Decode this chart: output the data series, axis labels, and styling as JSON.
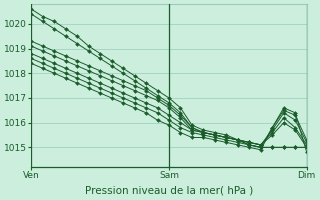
{
  "bg_color": "#cceedd",
  "grid_color": "#99ccbb",
  "line_color": "#1a5c2a",
  "xlabel": "Pression niveau de la mer( hPa )",
  "xtick_labels": [
    "Ven",
    "Sam",
    "Dim"
  ],
  "xtick_positions": [
    0,
    12,
    24
  ],
  "ytick_labels": [
    "1015",
    "1016",
    "1017",
    "1018",
    "1019",
    "1020"
  ],
  "ylim": [
    1014.2,
    1020.8
  ],
  "xlim": [
    0,
    24
  ],
  "xlabel_fontsize": 7.5,
  "tick_fontsize": 6.5,
  "series": [
    [
      1020.6,
      1020.3,
      1020.1,
      1019.8,
      1019.5,
      1019.1,
      1018.8,
      1018.5,
      1018.2,
      1017.9,
      1017.6,
      1017.3,
      1017.0,
      1016.6,
      1015.9,
      1015.7,
      1015.6,
      1015.5,
      1015.3,
      1015.1,
      1015.0,
      1015.0,
      1015.0,
      1015.0,
      1015.0
    ],
    [
      1020.4,
      1020.1,
      1019.8,
      1019.5,
      1019.2,
      1018.9,
      1018.6,
      1018.3,
      1018.0,
      1017.7,
      1017.4,
      1017.1,
      1016.8,
      1016.4,
      1015.8,
      1015.6,
      1015.5,
      1015.4,
      1015.3,
      1015.1,
      1015.0,
      1015.0,
      1015.0,
      1015.0,
      1015.0
    ],
    [
      1019.3,
      1019.1,
      1018.9,
      1018.7,
      1018.5,
      1018.3,
      1018.1,
      1017.9,
      1017.7,
      1017.5,
      1017.3,
      1017.0,
      1016.7,
      1016.3,
      1015.8,
      1015.6,
      1015.5,
      1015.4,
      1015.3,
      1015.2,
      1015.1,
      1015.5,
      1016.0,
      1015.7,
      1015.0
    ],
    [
      1019.1,
      1018.9,
      1018.7,
      1018.5,
      1018.3,
      1018.1,
      1017.9,
      1017.7,
      1017.5,
      1017.3,
      1017.1,
      1016.9,
      1016.6,
      1016.2,
      1015.7,
      1015.6,
      1015.5,
      1015.4,
      1015.3,
      1015.2,
      1015.1,
      1015.6,
      1016.2,
      1015.8,
      1015.1
    ],
    [
      1018.8,
      1018.6,
      1018.4,
      1018.2,
      1018.0,
      1017.8,
      1017.6,
      1017.4,
      1017.2,
      1017.0,
      1016.8,
      1016.6,
      1016.3,
      1016.0,
      1015.7,
      1015.6,
      1015.5,
      1015.4,
      1015.3,
      1015.2,
      1015.1,
      1015.7,
      1016.4,
      1016.1,
      1015.2
    ],
    [
      1018.6,
      1018.4,
      1018.2,
      1018.0,
      1017.8,
      1017.6,
      1017.4,
      1017.2,
      1017.0,
      1016.8,
      1016.6,
      1016.4,
      1016.1,
      1015.8,
      1015.6,
      1015.5,
      1015.4,
      1015.3,
      1015.2,
      1015.1,
      1015.0,
      1015.8,
      1016.5,
      1016.3,
      1015.3
    ],
    [
      1018.4,
      1018.2,
      1018.0,
      1017.8,
      1017.6,
      1017.4,
      1017.2,
      1017.0,
      1016.8,
      1016.6,
      1016.4,
      1016.1,
      1015.9,
      1015.6,
      1015.4,
      1015.4,
      1015.3,
      1015.2,
      1015.1,
      1015.0,
      1014.9,
      1015.8,
      1016.6,
      1016.4,
      1014.8
    ]
  ]
}
